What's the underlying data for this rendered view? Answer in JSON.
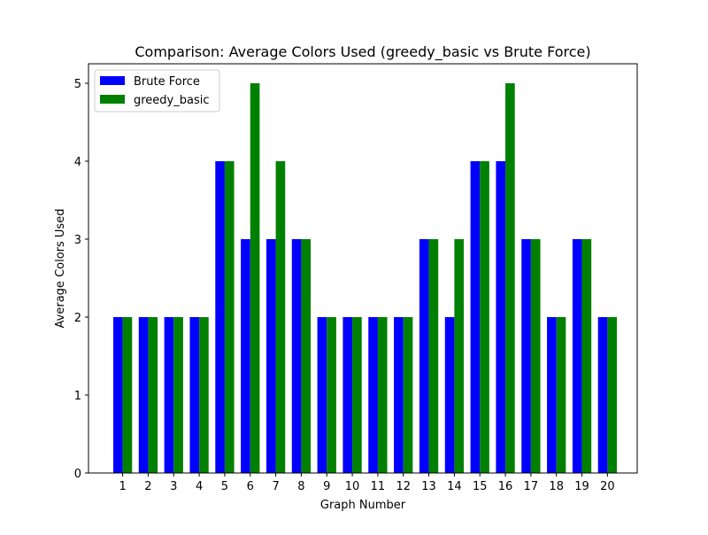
{
  "chart_data": {
    "type": "bar",
    "title": "Comparison: Average Colors Used (greedy_basic vs Brute Force)",
    "xlabel": "Graph Number",
    "ylabel": "Average Colors Used",
    "categories": [
      "1",
      "2",
      "3",
      "4",
      "5",
      "6",
      "7",
      "8",
      "9",
      "10",
      "11",
      "12",
      "13",
      "14",
      "15",
      "16",
      "17",
      "18",
      "19",
      "20"
    ],
    "series": [
      {
        "name": "Brute Force",
        "color": "#0000ff",
        "values": [
          2,
          2,
          2,
          2,
          4,
          3,
          3,
          3,
          2,
          2,
          2,
          2,
          3,
          2,
          4,
          4,
          3,
          2,
          3,
          2
        ]
      },
      {
        "name": "greedy_basic",
        "color": "#008000",
        "values": [
          2,
          2,
          2,
          2,
          4,
          5,
          4,
          3,
          2,
          2,
          2,
          2,
          3,
          3,
          4,
          5,
          3,
          2,
          3,
          2
        ]
      }
    ],
    "ylim": [
      0,
      5.25
    ],
    "yticks": [
      "0",
      "1",
      "2",
      "3",
      "4",
      "5"
    ],
    "grid": false,
    "legend_position": "top-left"
  }
}
